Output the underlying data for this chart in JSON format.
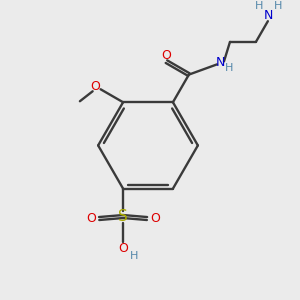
{
  "background_color": "#ebebeb",
  "bond_color": "#3a3a3a",
  "colors": {
    "O": "#dd0000",
    "N": "#0000cc",
    "S": "#aaaa00",
    "C": "#3a3a3a",
    "H": "#3a3a3a",
    "H_blue": "#5588aa"
  },
  "figsize": [
    3.0,
    3.0
  ],
  "dpi": 100
}
